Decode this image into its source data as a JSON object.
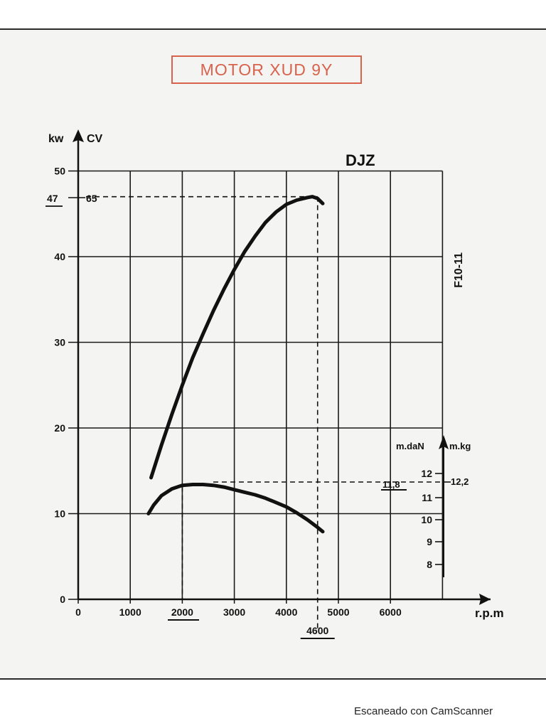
{
  "title": "MOTOR XUD 9Y",
  "watermark": "Escaneado con CamScanner",
  "chart_data": {
    "type": "line",
    "model_label": "DJZ",
    "side_label": "F10-11",
    "x_axis": {
      "label": "r.p.m",
      "range": [
        0,
        7000
      ],
      "ticks": [
        0,
        1000,
        2000,
        3000,
        4000,
        5000,
        6000
      ],
      "tick_labels": [
        "0",
        "1000",
        "2000",
        "3000",
        "4000",
        "5000",
        "6000"
      ],
      "highlighted_ticks": [
        "2000",
        "4600"
      ]
    },
    "y_axis_left": {
      "label_kw": "kw",
      "label_cv": "CV",
      "range": [
        0,
        50
      ],
      "ticks": [
        0,
        10,
        20,
        30,
        40,
        50
      ],
      "tick_labels": [
        "0",
        "10",
        "20",
        "30",
        "40",
        "50"
      ],
      "power_marker_kw": "47",
      "power_marker_cv": "65"
    },
    "y_axis_right": {
      "label_left": "m.daN",
      "label_right": "m.kg",
      "tick_labels": [
        "12",
        "11",
        "10",
        "9",
        "8"
      ],
      "torque_marker_mdan": "11,8",
      "torque_marker_mkg": "12,2"
    },
    "grid": true,
    "series": [
      {
        "x": [
          1400,
          1600,
          1800,
          2000,
          2200,
          2400,
          2600,
          2800,
          3000,
          3200,
          3400,
          3600,
          3800,
          4000,
          4200,
          4400,
          4500,
          4600,
          4700
        ],
        "y": [
          14.2,
          18.0,
          21.6,
          25.0,
          28.2,
          31.0,
          33.7,
          36.2,
          38.5,
          40.6,
          42.4,
          44.0,
          45.2,
          46.1,
          46.6,
          46.9,
          47.0,
          46.8,
          46.2
        ]
      },
      {
        "x": [
          1350,
          1450,
          1600,
          1800,
          2000,
          2200,
          2400,
          2600,
          2800,
          3000,
          3200,
          3400,
          3600,
          3800,
          4000,
          4200,
          4400,
          4600,
          4700
        ],
        "y": [
          10.0,
          11.0,
          12.1,
          12.9,
          13.3,
          13.4,
          13.4,
          13.3,
          13.1,
          12.8,
          12.5,
          12.2,
          11.8,
          11.3,
          10.8,
          10.1,
          9.3,
          8.4,
          7.9
        ]
      }
    ],
    "reference_lines": [
      {
        "x": 4600,
        "y": 47
      },
      {
        "x": 2000,
        "y": 13.4
      }
    ]
  }
}
